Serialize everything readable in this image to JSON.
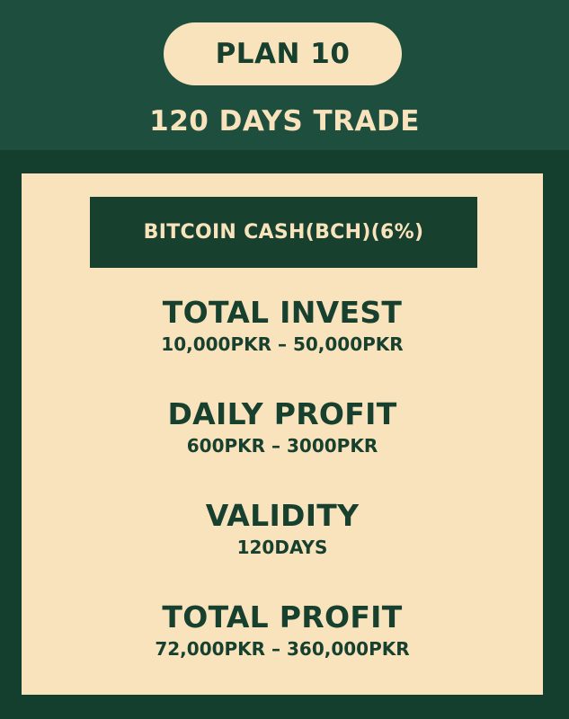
{
  "header": {
    "plan_label": "PLAN 10",
    "title": "120 DAYS TRADE"
  },
  "card": {
    "coin_banner": "BITCOIN CASH(BCH)(6%)",
    "stats": [
      {
        "label": "TOTAL INVEST",
        "value": "10,000PKR – 50,000PKR"
      },
      {
        "label": "DAILY PROFIT",
        "value": "600PKR – 3000PKR"
      },
      {
        "label": "VALIDITY",
        "value": "120DAYS"
      },
      {
        "label": "TOTAL PROFIT",
        "value": "72,000PKR – 360,000PKR"
      }
    ]
  },
  "colors": {
    "background_dark": "#143f2e",
    "header_band": "#1e4e3d",
    "cream": "#f9e3bd",
    "text_dark_green": "#17402f"
  }
}
